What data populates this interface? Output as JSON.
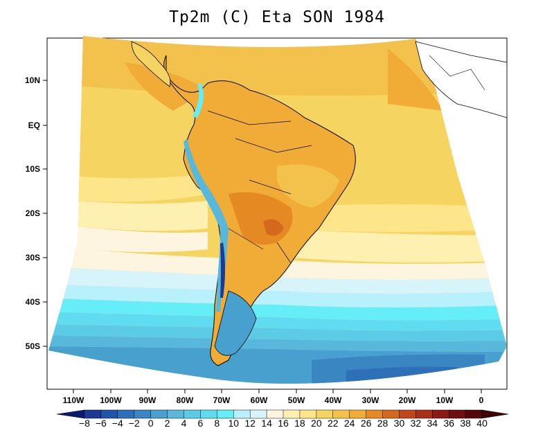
{
  "title": "Tp2m (C) Eta SON 1984",
  "y_ticks": [
    "10N",
    "EQ",
    "10S",
    "20S",
    "30S",
    "40S",
    "50S"
  ],
  "x_ticks": [
    "110W",
    "100W",
    "90W",
    "80W",
    "70W",
    "60W",
    "50W",
    "40W",
    "30W",
    "20W",
    "10W",
    "0"
  ],
  "colorbar": {
    "labels": [
      "−8",
      "−6",
      "−4",
      "−2",
      "0",
      "2",
      "4",
      "6",
      "8",
      "10",
      "12",
      "14",
      "16",
      "18",
      "20",
      "22",
      "24",
      "26",
      "28",
      "30",
      "32",
      "34",
      "36",
      "38",
      "40"
    ],
    "colors": [
      "#0a1a6e",
      "#1c3a94",
      "#1f56a8",
      "#2d70b8",
      "#3a86c2",
      "#48a0cf",
      "#57b8dc",
      "#5ccbe6",
      "#5fdcef",
      "#66eef8",
      "#b8f0fb",
      "#d8f4fb",
      "#fdf5e0",
      "#fef0b0",
      "#fde58a",
      "#f6d462",
      "#f3c24c",
      "#f0ac36",
      "#e58a22",
      "#d4681c",
      "#c04818",
      "#a83016",
      "#8c1a14",
      "#6e1010",
      "#520808",
      "#3c0404"
    ]
  },
  "colors": {
    "land_outline": "#000000",
    "ocean_warm": "#f3c24c",
    "ocean_cold": "#3a86c2"
  }
}
